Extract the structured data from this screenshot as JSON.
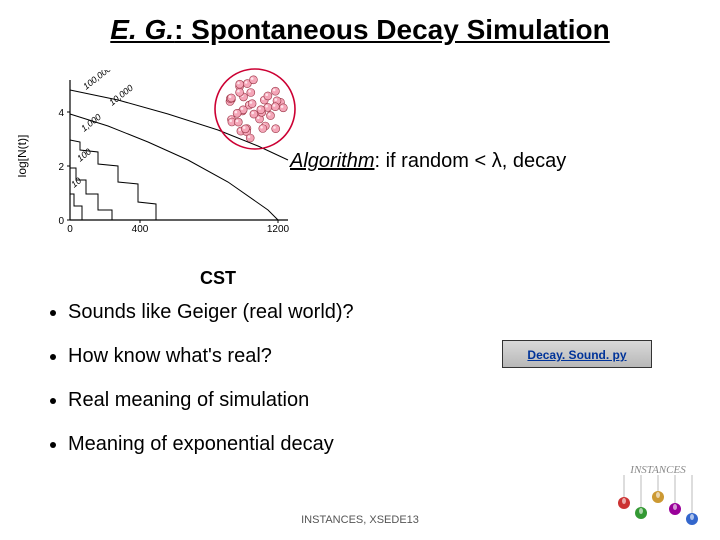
{
  "title": {
    "eg": "E. G.",
    "rest": ": Spontaneous Decay Simulation",
    "fontsize": 28
  },
  "chart": {
    "type": "line-step",
    "ylabel": "log[N(t)]",
    "xlim": [
      0,
      1200
    ],
    "ylim": [
      0,
      5
    ],
    "xticks": [
      0,
      400,
      1200
    ],
    "yticks": [
      0,
      2,
      4
    ],
    "series_labels": [
      "100,000",
      "10,000",
      "1,000",
      "100",
      "10"
    ],
    "line_color": "#000000",
    "background_color": "#ffffff",
    "axis_color": "#000000"
  },
  "cluster": {
    "circle_stroke": "#cc0033",
    "ball_fill": "#f4a6b8",
    "ball_stroke": "#993344",
    "radius": 40,
    "ball_count": 40
  },
  "algorithm": {
    "label": "Algorithm",
    "text": ": if random < λ, decay"
  },
  "cst_label": "CST",
  "bullets": [
    "Sounds like Geiger (real world)?",
    "How know what's real?",
    "Real meaning of simulation",
    "Meaning of exponential decay"
  ],
  "link_button": {
    "label": "Decay. Sound. py",
    "bg_top": "#d9d9d9",
    "bg_bottom": "#b8b8b8",
    "text_color": "#003399"
  },
  "footer": "INSTANCES, XSEDE13",
  "logo": {
    "text": "INSTANCES",
    "text_color": "#888888",
    "ball_colors": [
      "#cc3333",
      "#339933",
      "#cc9933",
      "#990099",
      "#3366cc"
    ]
  }
}
